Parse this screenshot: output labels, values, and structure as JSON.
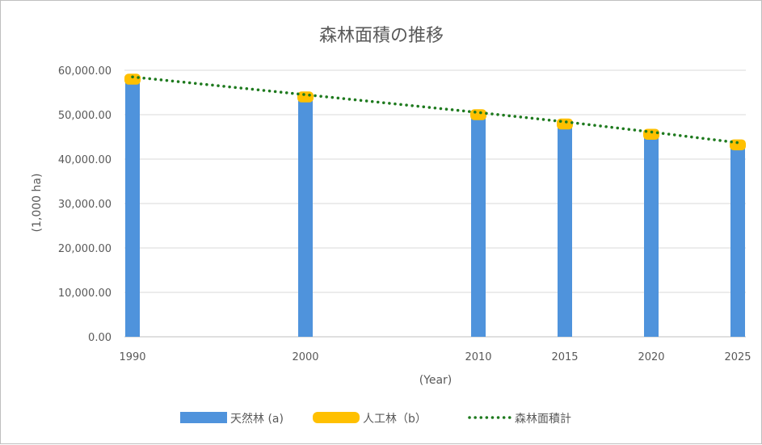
{
  "chart_data": {
    "type": "bar",
    "title": "森林面積の推移",
    "xlabel": "(Year)",
    "ylabel": "(1,000 ha)",
    "x": [
      1990,
      2000,
      2010,
      2015,
      2020,
      2025
    ],
    "xtick_labels": [
      "1990",
      "2000",
      "2010",
      "2015",
      "2020",
      "2025"
    ],
    "ylim": [
      0,
      60000
    ],
    "yticks": [
      0,
      10000,
      20000,
      30000,
      40000,
      50000,
      60000
    ],
    "ytick_labels": [
      "0.00",
      "10,000.00",
      "20,000.00",
      "30,000.00",
      "40,000.00",
      "50,000.00",
      "60,000.00"
    ],
    "stacked": true,
    "grid": true,
    "legend_position": "bottom",
    "series": [
      {
        "name": "天然林 (a)",
        "kind": "bar",
        "color": "#4f93dc",
        "values": [
          57500,
          53500,
          49500,
          47400,
          45100,
          42700
        ]
      },
      {
        "name": "人工林（b）",
        "kind": "bar",
        "color": "#ffc000",
        "values": [
          1000,
          1000,
          1000,
          1000,
          1000,
          1000
        ]
      },
      {
        "name": "森林面積計",
        "kind": "line",
        "style": "dotted",
        "color": "#1e7a1e",
        "values": [
          58500,
          54500,
          50500,
          48400,
          46100,
          43700
        ]
      }
    ]
  }
}
